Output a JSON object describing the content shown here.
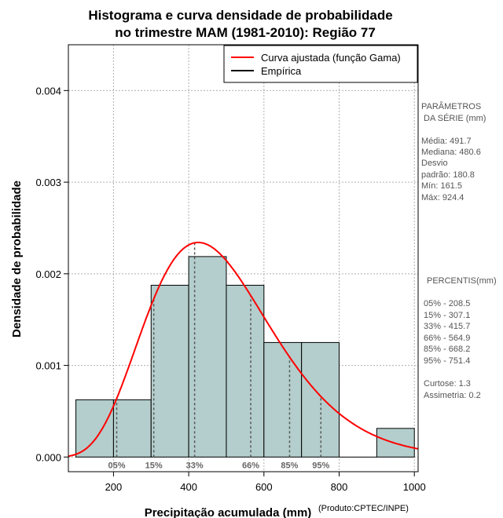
{
  "chart_data": {
    "type": "histogram",
    "title_lines": [
      "Histograma e curva densidade de probabilidade",
      "no trimestre MAM (1981-2010): Região 77"
    ],
    "xlabel": "Precipitação acumulada (mm)",
    "ylabel": "Densidade de probabilidade",
    "credit": "(Produto:CPTEC/INPE)",
    "xlim": [
      80,
      1010
    ],
    "ylim": [
      -0.00016,
      0.0045
    ],
    "x_ticks": [
      200,
      400,
      600,
      800,
      1000
    ],
    "y_ticks": [
      0.0,
      0.001,
      0.002,
      0.003,
      0.004
    ],
    "y_tick_labels": [
      "0.000",
      "0.001",
      "0.002",
      "0.003",
      "0.004"
    ],
    "grid": true,
    "bins": [
      {
        "from": 100,
        "to": 200,
        "density": 0.000625
      },
      {
        "from": 200,
        "to": 300,
        "density": 0.000625
      },
      {
        "from": 300,
        "to": 400,
        "density": 0.001875
      },
      {
        "from": 400,
        "to": 500,
        "density": 0.002188
      },
      {
        "from": 500,
        "to": 600,
        "density": 0.001875
      },
      {
        "from": 600,
        "to": 700,
        "density": 0.00125
      },
      {
        "from": 700,
        "to": 800,
        "density": 0.00125
      },
      {
        "from": 800,
        "to": 900,
        "density": 0.0
      },
      {
        "from": 900,
        "to": 1000,
        "density": 0.0003125
      }
    ],
    "bar_color": "#b3cecc",
    "curve_color": "#ff0000",
    "gamma_fit": {
      "mean": 491.7,
      "sd": 180.8
    },
    "legend": {
      "position": "top-right",
      "entries": [
        {
          "label": "Curva ajustada (função Gama)",
          "color": "#ff0000"
        },
        {
          "label": "Empírica",
          "color": "#000000"
        }
      ]
    },
    "percentile_markers": [
      {
        "label": "05%",
        "value": 208.5
      },
      {
        "label": "15%",
        "value": 307.1
      },
      {
        "label": "33%",
        "value": 415.7
      },
      {
        "label": "66%",
        "value": 564.9
      },
      {
        "label": "85%",
        "value": 668.2
      },
      {
        "label": "95%",
        "value": 751.4
      }
    ]
  },
  "side_panel": {
    "params_title_1": "PARÂMETROS",
    "params_title_2": "DA SÉRIE (mm)",
    "media": "Média:  491.7",
    "mediana": "Mediana:  480.6",
    "desvio_1": "Desvio",
    "desvio_2": "padrão:  180.8",
    "min": "Mín:  161.5",
    "max": "Máx:  924.4",
    "percentis_title": "PERCENTIS(mm)",
    "p05": "05% -  208.5",
    "p15": "15% -  307.1",
    "p33": "33% -  415.7",
    "p66": "66% -  564.9",
    "p85": "85% -  668.2",
    "p95": "95% -  751.4",
    "curtose": "Curtose:  1.3",
    "assimetria": "Assimetria:  0.2"
  }
}
